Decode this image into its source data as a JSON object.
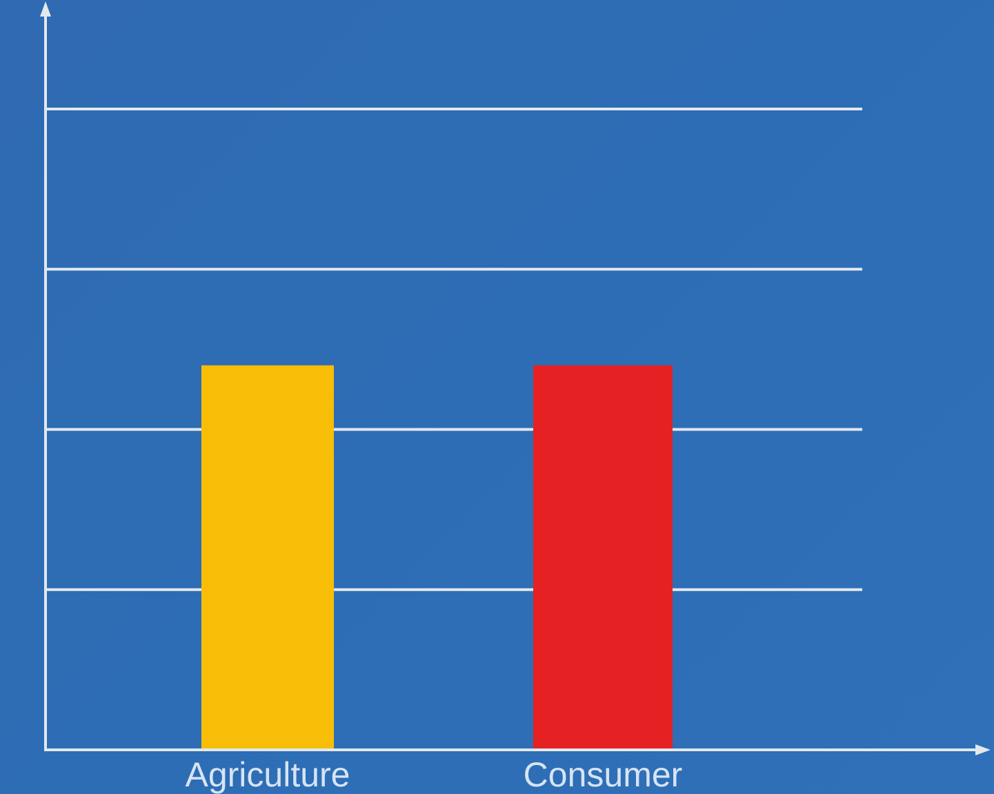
{
  "chart_data": {
    "type": "bar",
    "title": "",
    "xlabel": "",
    "ylabel": "",
    "categories": [
      "Agriculture",
      "Consumer"
    ],
    "values": [
      2.4,
      2.4
    ],
    "ylim": [
      0,
      4
    ],
    "grid": true,
    "bar_colors": [
      "#f8bd06",
      "#e52124"
    ],
    "axis_color": "#e3e8ee",
    "background_color": "#2e6cb4"
  }
}
